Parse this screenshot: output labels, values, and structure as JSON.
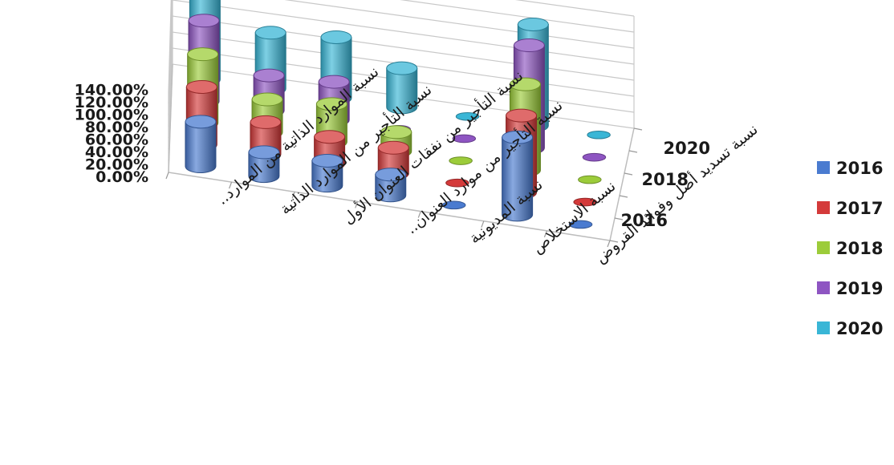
{
  "chart_data": {
    "type": "bar",
    "title": "",
    "xlabel": "",
    "ylabel": "",
    "ylim": [
      0,
      140
    ],
    "y_unit": "%",
    "y_ticks": [
      "0.00%",
      "20.00%",
      "40.00%",
      "60.00%",
      "80.00%",
      "100.00%",
      "120.00%",
      "140.00%"
    ],
    "depth_labels": [
      "2020",
      "2018",
      "2016"
    ],
    "categories": [
      "نسبة الموارد الذاتية من الموارد..",
      "نسبة التأجير من الموارد الذاتية",
      "نسبة التأجير من نفقات العنوان الأول",
      "نسبة التأجير من موارد العنوان..",
      "نسبة المديونية",
      "نسبة الاستخلاص",
      "نسبة تسديد أصل وفوائد القروض"
    ],
    "series": [
      {
        "name": "2016",
        "color": "#4a7bd0",
        "values": [
          75,
          40,
          42,
          35,
          0,
          130,
          0
        ]
      },
      {
        "name": "2017",
        "color": "#d43a3a",
        "values": [
          90,
          50,
          42,
          40,
          0,
          120,
          0
        ]
      },
      {
        "name": "2018",
        "color": "#9ccc3a",
        "values": [
          100,
          48,
          55,
          28,
          0,
          125,
          0
        ]
      },
      {
        "name": "2019",
        "color": "#8e55c2",
        "values": [
          110,
          48,
          52,
          0,
          0,
          140,
          0
        ]
      },
      {
        "name": "2020",
        "color": "#39b6d6",
        "values": [
          112,
          72,
          78,
          50,
          0,
          130,
          0
        ]
      }
    ],
    "legend_position": "right",
    "grid": true
  }
}
